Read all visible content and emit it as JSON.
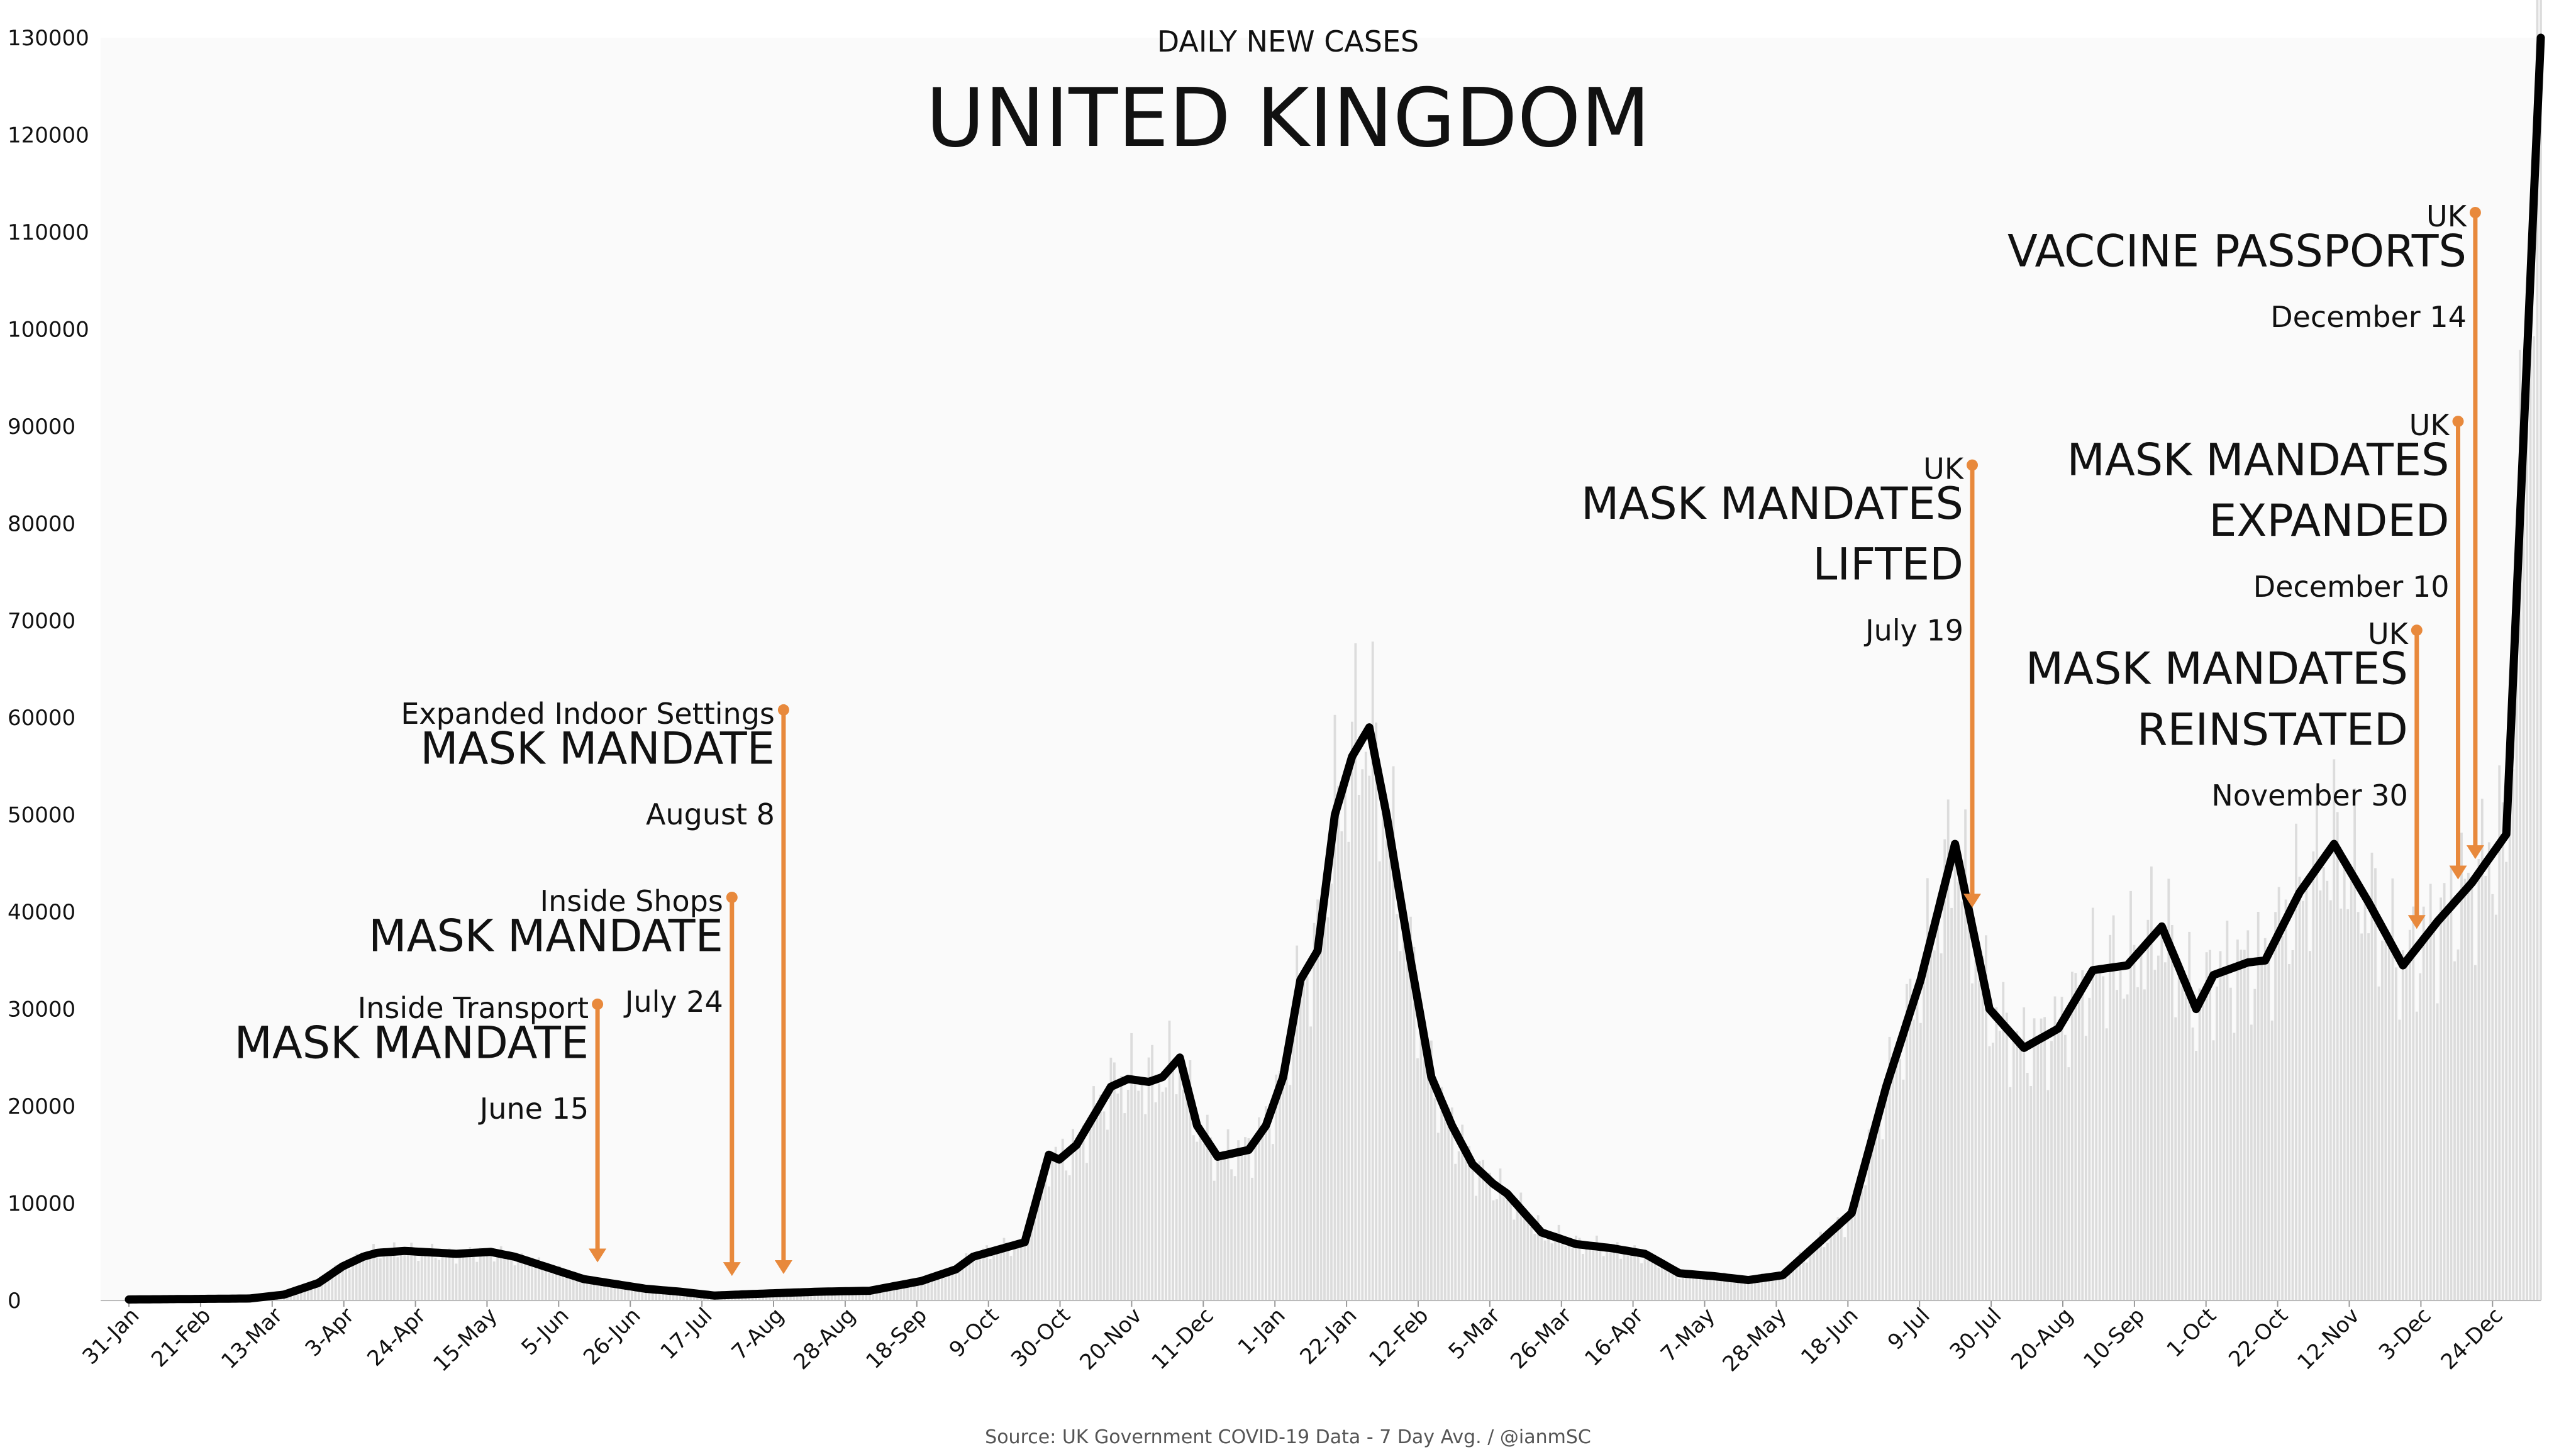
{
  "chart_data": {
    "type": "line",
    "subtitle": "DAILY NEW CASES",
    "title": "UNITED KINGDOM",
    "source": "Source: UK Government COVID-19 Data - 7 Day Avg. / @ianmSC",
    "ylim": [
      0,
      130000
    ],
    "y_ticks": [
      0,
      10000,
      20000,
      30000,
      40000,
      50000,
      60000,
      70000,
      80000,
      90000,
      100000,
      110000,
      120000,
      130000
    ],
    "x_tick_labels": [
      "31-Jan",
      "21-Feb",
      "13-Mar",
      "3-Apr",
      "24-Apr",
      "15-May",
      "5-Jun",
      "26-Jun",
      "17-Jul",
      "7-Aug",
      "28-Aug",
      "18-Sep",
      "9-Oct",
      "30-Oct",
      "20-Nov",
      "11-Dec",
      "1-Jan",
      "22-Jan",
      "12-Feb",
      "5-Mar",
      "26-Mar",
      "16-Apr",
      "7-May",
      "28-May",
      "18-Jun",
      "9-Jul",
      "30-Jul",
      "20-Aug",
      "10-Sep",
      "1-Oct",
      "22-Oct",
      "12-Nov",
      "3-Dec",
      "24-Dec"
    ],
    "x_range_days": [
      0,
      700
    ],
    "grid": false,
    "colors": {
      "line": "#000000",
      "daily_bars": "#dcdcdc",
      "annotation": "#e8893c"
    },
    "series": [
      {
        "x_days": [
          0,
          35,
          45,
          55,
          62,
          68,
          72,
          80,
          95,
          105,
          112,
          125,
          132,
          150,
          160,
          170,
          180,
          200,
          215,
          230,
          240,
          245,
          260,
          267,
          270,
          275,
          285,
          290,
          296,
          300,
          305,
          310,
          316,
          325,
          330,
          335,
          340,
          345,
          350,
          355,
          360,
          365,
          372,
          378,
          384,
          390,
          396,
          400,
          405,
          410,
          420,
          430,
          440,
          450,
          460,
          465,
          470,
          480,
          500,
          510,
          520,
          530,
          540,
          550,
          560,
          570,
          580,
          590,
          600,
          605,
          615,
          620,
          630,
          640,
          650,
          660,
          670,
          680,
          690,
          700
        ],
        "values": [
          100,
          200,
          600,
          1800,
          3500,
          4500,
          4900,
          5100,
          4800,
          5000,
          4500,
          3000,
          2200,
          1200,
          900,
          500,
          650,
          900,
          1000,
          2000,
          3200,
          4500,
          6000,
          15000,
          14500,
          16000,
          22000,
          22800,
          22500,
          23000,
          25000,
          18000,
          14800,
          15500,
          18000,
          23000,
          33000,
          36000,
          50000,
          56000,
          59000,
          50000,
          35000,
          23000,
          18000,
          14000,
          12000,
          11000,
          9000,
          7000,
          5800,
          5400,
          4800,
          2800,
          2500,
          2300,
          2100,
          2600,
          9000,
          22000,
          33000,
          47000,
          30000,
          26000,
          28000,
          34000,
          34500,
          38500,
          30000,
          33500,
          34800,
          35000,
          42000,
          47000,
          41000,
          34500,
          39000,
          43000,
          48000,
          130000
        ]
      }
    ],
    "annotations": [
      {
        "x_day": 136,
        "y": 30500,
        "lines": [
          "Inside Transport",
          "MASK MANDATE",
          "June 15"
        ]
      },
      {
        "x_day": 175,
        "y": 41500,
        "lines": [
          "Inside Shops",
          "MASK MANDATE",
          "July 24"
        ]
      },
      {
        "x_day": 190,
        "y": 60800,
        "lines": [
          "Expanded Indoor Settings",
          "MASK MANDATE",
          "August 8"
        ]
      },
      {
        "x_day": 535,
        "y": 86000,
        "lines": [
          "UK",
          "MASK MANDATES",
          "LIFTED",
          "July 19"
        ]
      },
      {
        "x_day": 664,
        "y": 69000,
        "lines": [
          "UK",
          "MASK MANDATES",
          "REINSTATED",
          "November 30"
        ]
      },
      {
        "x_day": 676,
        "y": 90500,
        "lines": [
          "UK",
          "MASK MANDATES",
          "EXPANDED",
          "December 10"
        ]
      },
      {
        "x_day": 681,
        "y": 112000,
        "lines": [
          "UK",
          "VACCINE PASSPORTS",
          "December 14"
        ]
      }
    ]
  }
}
